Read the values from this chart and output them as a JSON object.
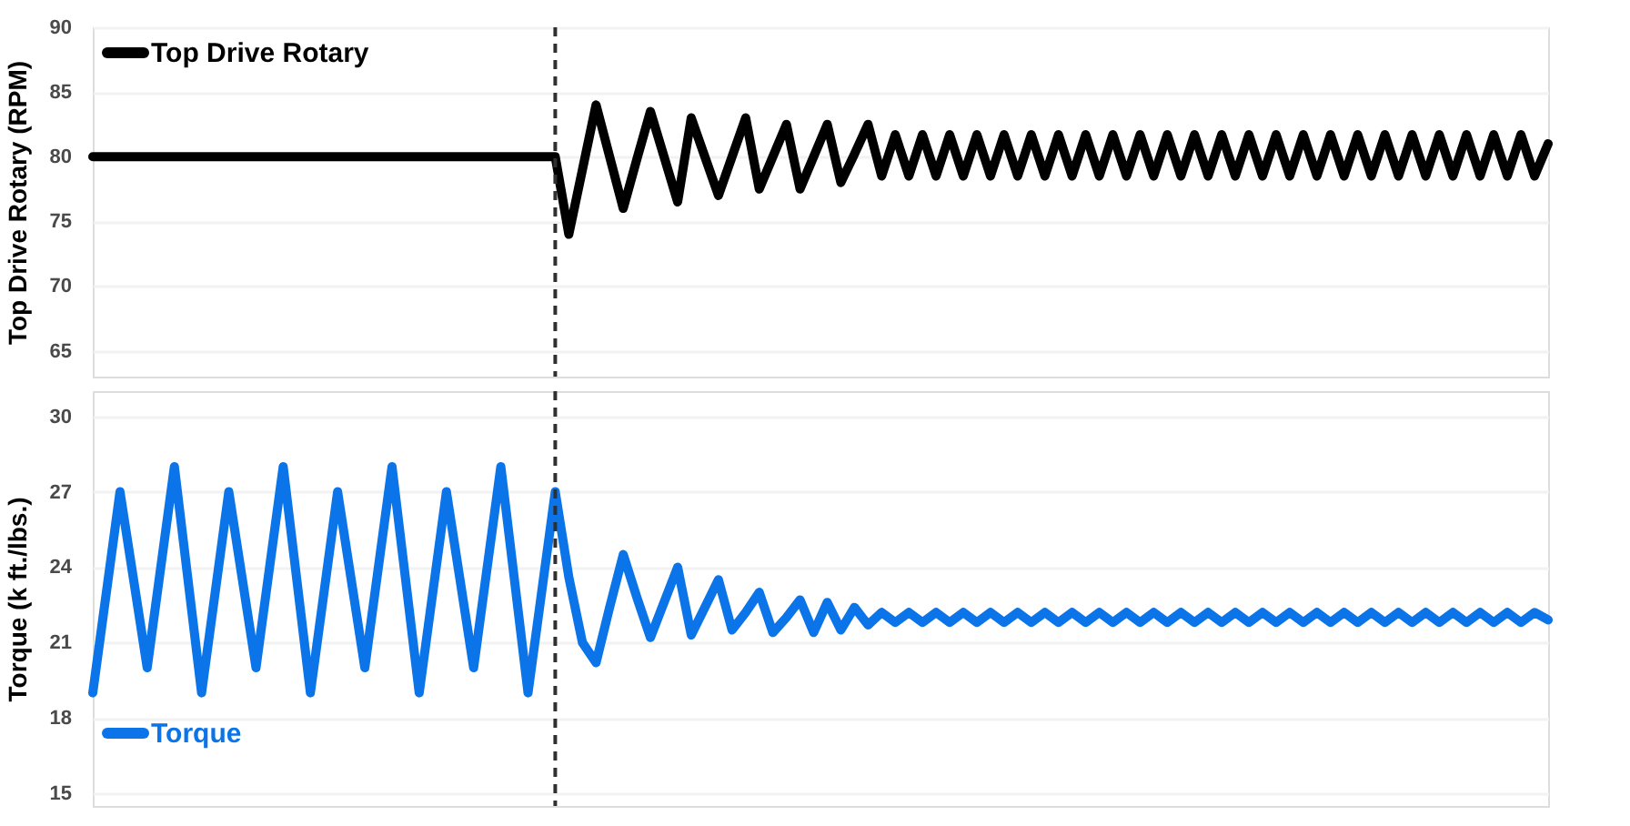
{
  "chart_data": [
    {
      "type": "line",
      "ylabel": "Top Drive Rotary (RPM)",
      "ylim": [
        63,
        90
      ],
      "yticks": [
        65,
        70,
        75,
        80,
        85,
        90
      ],
      "grid": "y",
      "tick_labels": "y",
      "legend": "top left",
      "categories": [
        null,
        null,
        null,
        null,
        null,
        null,
        null,
        null,
        null,
        null,
        null,
        null,
        null,
        null,
        null,
        null,
        null,
        null,
        null,
        null,
        null,
        null,
        null,
        null,
        null,
        null,
        null,
        null,
        null,
        null,
        null,
        null,
        null,
        null,
        null,
        null,
        null,
        null,
        null,
        null,
        null,
        null,
        null,
        null,
        null,
        null,
        null,
        null,
        null,
        null,
        null,
        null,
        null,
        null,
        null,
        null,
        null,
        null,
        null,
        null,
        null,
        null,
        null,
        null,
        null,
        null,
        null,
        null,
        null,
        null,
        null,
        null,
        null,
        null,
        null,
        null,
        null,
        null,
        null,
        null,
        null,
        null,
        null,
        null,
        null,
        null,
        null,
        null,
        null,
        null,
        null,
        null,
        null,
        null,
        null,
        null,
        null,
        null,
        null,
        null,
        null,
        null,
        null,
        null,
        null,
        null,
        null,
        null
      ],
      "series": [
        {
          "name": "Top Drive Rotary",
          "color": "#000000",
          "values": [
            80,
            80,
            80,
            80,
            80,
            80,
            80,
            80,
            80,
            80,
            80,
            80,
            80,
            80,
            80,
            80,
            80,
            80,
            80,
            80,
            80,
            80,
            80,
            80,
            80,
            80,
            80,
            80,
            80,
            80,
            80,
            80,
            80,
            80,
            80,
            74,
            79,
            84,
            80,
            76,
            79.8,
            83.5,
            80,
            76.5,
            83,
            80,
            77,
            80,
            83,
            77.5,
            80,
            82.5,
            77.5,
            80,
            82.5,
            78,
            80.2,
            82.5,
            78.5,
            81.7,
            78.5,
            81.7,
            78.5,
            81.7,
            78.5,
            81.7,
            78.5,
            81.7,
            78.5,
            81.7,
            78.5,
            81.7,
            78.5,
            81.7,
            78.5,
            81.7,
            78.5,
            81.7,
            78.5,
            81.7,
            78.5,
            81.7,
            78.5,
            81.7,
            78.5,
            81.7,
            78.5,
            81.7,
            78.5,
            81.7,
            78.5,
            81.7,
            78.5,
            81.7,
            78.5,
            81.7,
            78.5,
            81.7,
            78.5,
            81.7,
            78.5,
            81.7,
            78.5,
            81.7,
            78.5,
            81.7,
            78.5,
            81
          ]
        }
      ]
    },
    {
      "type": "line",
      "ylabel": "Torque (k ft./lbs.)",
      "ylim": [
        14.5,
        31
      ],
      "yticks": [
        15,
        18,
        21,
        24,
        27,
        30
      ],
      "grid": "y",
      "tick_labels": "y",
      "legend": "bottom left",
      "categories": [
        null,
        null,
        null,
        null,
        null,
        null,
        null,
        null,
        null,
        null,
        null,
        null,
        null,
        null,
        null,
        null,
        null,
        null,
        null,
        null,
        null,
        null,
        null,
        null,
        null,
        null,
        null,
        null,
        null,
        null,
        null,
        null,
        null,
        null,
        null,
        null,
        null,
        null,
        null,
        null,
        null,
        null,
        null,
        null,
        null,
        null,
        null,
        null,
        null,
        null,
        null,
        null,
        null,
        null,
        null,
        null,
        null,
        null,
        null,
        null,
        null,
        null,
        null,
        null,
        null,
        null,
        null,
        null,
        null,
        null,
        null,
        null,
        null,
        null,
        null,
        null,
        null,
        null,
        null,
        null,
        null,
        null,
        null,
        null,
        null,
        null,
        null,
        null,
        null,
        null,
        null,
        null,
        null,
        null,
        null,
        null,
        null,
        null,
        null,
        null,
        null,
        null,
        null,
        null,
        null,
        null,
        null,
        null
      ],
      "series": [
        {
          "name": "Torque",
          "color": "#0a74e8",
          "values": [
            19,
            23,
            27,
            23.5,
            20,
            24,
            28,
            23.5,
            19,
            23,
            27,
            23.5,
            20,
            24,
            28,
            23.5,
            19,
            23,
            27,
            23.5,
            20,
            24,
            28,
            23.5,
            19,
            23,
            27,
            23.5,
            20,
            24,
            28,
            23.5,
            19,
            23,
            27,
            23.6,
            21,
            20.2,
            22.4,
            24.5,
            22.8,
            21.2,
            22.6,
            24,
            21.3,
            22.4,
            23.5,
            21.5,
            22.2,
            23,
            21.4,
            22,
            22.7,
            21.4,
            22.6,
            21.5,
            22.4,
            21.7,
            22.2,
            21.8,
            22.2,
            21.8,
            22.2,
            21.8,
            22.2,
            21.8,
            22.2,
            21.8,
            22.2,
            21.8,
            22.2,
            21.8,
            22.2,
            21.8,
            22.2,
            21.8,
            22.2,
            21.8,
            22.2,
            21.8,
            22.2,
            21.8,
            22.2,
            21.8,
            22.2,
            21.8,
            22.2,
            21.8,
            22.2,
            21.8,
            22.2,
            21.8,
            22.2,
            21.8,
            22.2,
            21.8,
            22.2,
            21.8,
            22.2,
            21.8,
            22.2,
            21.8,
            22.2,
            21.8,
            22.2,
            21.8,
            22.2,
            21.9
          ]
        }
      ]
    }
  ]
}
